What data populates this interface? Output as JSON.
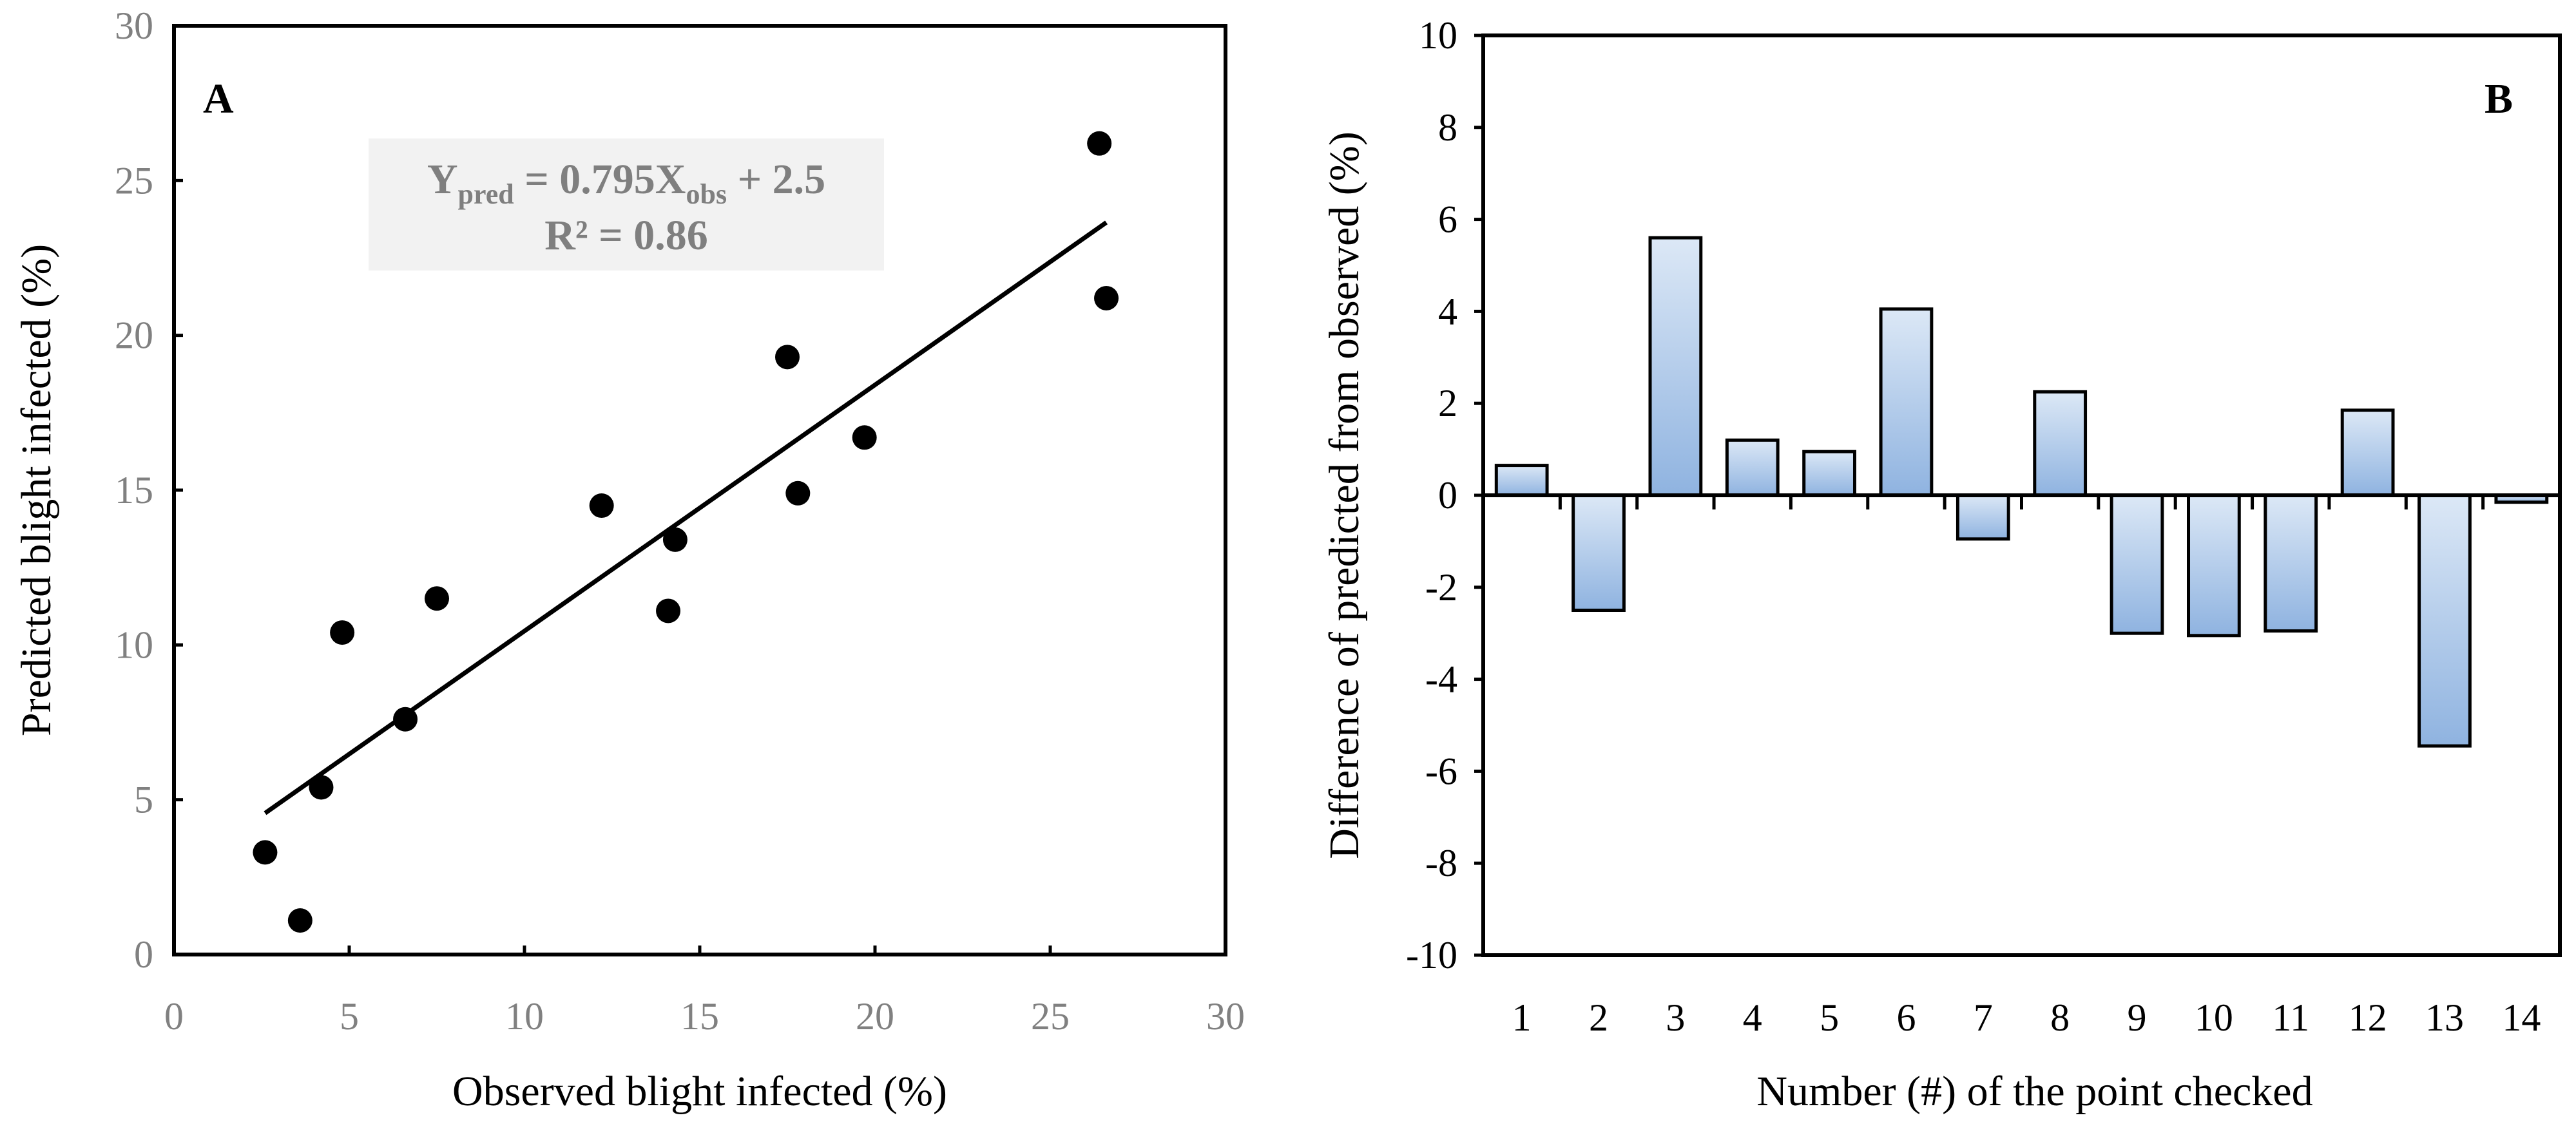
{
  "chart_data": [
    {
      "type": "scatter",
      "panel_label": "A",
      "xlabel": "Observed blight infected (%)",
      "ylabel": "Predicted blight infected (%)",
      "xlim": [
        0,
        30
      ],
      "ylim": [
        0,
        30
      ],
      "xticks": [
        "0",
        "5",
        "10",
        "15",
        "20",
        "25",
        "30"
      ],
      "yticks": [
        "0",
        "5",
        "10",
        "15",
        "20",
        "25",
        "30"
      ],
      "points": [
        {
          "x": 2.6,
          "y": 3.3
        },
        {
          "x": 3.6,
          "y": 1.1
        },
        {
          "x": 4.2,
          "y": 5.4
        },
        {
          "x": 4.8,
          "y": 10.4
        },
        {
          "x": 6.6,
          "y": 7.6
        },
        {
          "x": 7.5,
          "y": 11.5
        },
        {
          "x": 12.2,
          "y": 14.5
        },
        {
          "x": 14.1,
          "y": 11.1
        },
        {
          "x": 14.3,
          "y": 13.4
        },
        {
          "x": 17.5,
          "y": 19.3
        },
        {
          "x": 17.8,
          "y": 14.9
        },
        {
          "x": 19.7,
          "y": 16.7
        },
        {
          "x": 26.4,
          "y": 26.2
        },
        {
          "x": 26.6,
          "y": 21.2
        }
      ],
      "trendline": {
        "slope": 0.795,
        "intercept": 2.5,
        "x_start": 2.6,
        "x_end": 26.6
      },
      "equation": {
        "y_main": "Y",
        "y_sub": "pred",
        "middle": " = 0.795X",
        "x_sub": "obs",
        "end": " + 2.5",
        "r2": "R² = 0.86"
      }
    },
    {
      "type": "bar",
      "panel_label": "B",
      "xlabel": "Number (#) of the point checked",
      "ylabel": "Difference of predicted from observed (%)",
      "ylim": [
        -10,
        10
      ],
      "yticks": [
        "-10",
        "-8",
        "-6",
        "-4",
        "-2",
        "0",
        "2",
        "4",
        "6",
        "8",
        "10"
      ],
      "categories": [
        "1",
        "2",
        "3",
        "4",
        "5",
        "6",
        "7",
        "8",
        "9",
        "10",
        "11",
        "12",
        "13",
        "14"
      ],
      "values": [
        0.65,
        -2.5,
        5.6,
        1.2,
        0.95,
        4.05,
        -0.95,
        2.25,
        -3.0,
        -3.05,
        -2.95,
        1.85,
        -5.45,
        -0.15
      ],
      "bar_color_top": "#dce8f6",
      "bar_color_bottom": "#8fb3e0"
    }
  ]
}
